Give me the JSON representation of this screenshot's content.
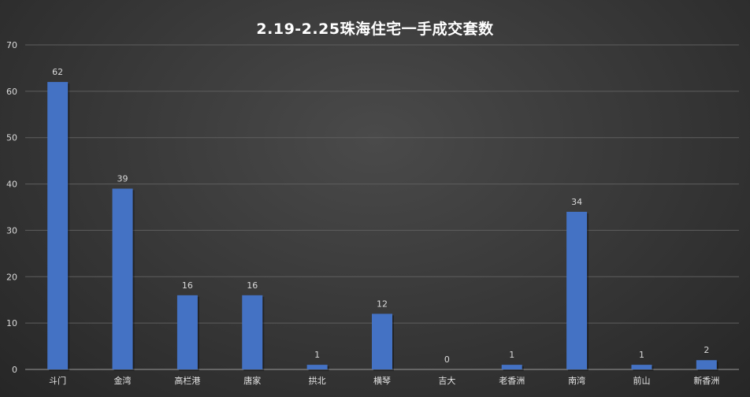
{
  "chart_data": {
    "type": "bar",
    "title": "2.19-2.25珠海住宅一手成交套数",
    "categories": [
      "斗门",
      "金湾",
      "高栏港",
      "唐家",
      "拱北",
      "横琴",
      "吉大",
      "老香洲",
      "南湾",
      "前山",
      "新香洲"
    ],
    "values": [
      62,
      39,
      16,
      16,
      1,
      12,
      0,
      1,
      34,
      1,
      2
    ],
    "ylim": [
      0,
      70
    ],
    "yticks": [
      0,
      10,
      20,
      30,
      40,
      50,
      60,
      70
    ],
    "grid": true,
    "legend": "none",
    "bar_color": "#4472c4"
  }
}
